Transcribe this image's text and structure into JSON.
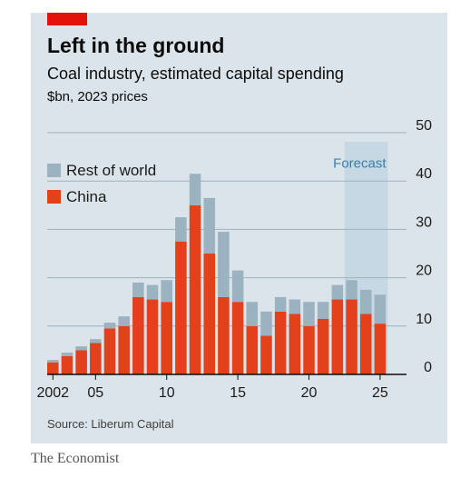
{
  "header": {
    "title": "Left in the ground",
    "subtitle": "Coal industry, estimated capital spending",
    "units": "$bn, 2023 prices"
  },
  "source": "Source: Liberum Capital",
  "brand": "The Economist",
  "colors": {
    "china": "#e3401c",
    "rest_of_world": "#9bb2c1",
    "panel_bg": "#dbe4ea",
    "forecast_band": "#c6d8e4",
    "accent_red": "#e3120b",
    "forecast_text": "#3d7ea6"
  },
  "chart_data": {
    "type": "bar",
    "stacked": true,
    "x": [
      2002,
      2003,
      2004,
      2005,
      2006,
      2007,
      2008,
      2009,
      2010,
      2011,
      2012,
      2013,
      2014,
      2015,
      2016,
      2017,
      2018,
      2019,
      2020,
      2021,
      2022,
      2023,
      2024,
      2025
    ],
    "series": [
      {
        "name": "China",
        "color": "#e3401c",
        "values": [
          2.5,
          3.8,
          5.0,
          6.5,
          9.5,
          10.0,
          16.0,
          15.5,
          15.0,
          27.5,
          35.0,
          25.0,
          16.0,
          15.0,
          10.0,
          8.0,
          13.0,
          12.5,
          10.0,
          11.5,
          15.5,
          15.5,
          12.5,
          10.5
        ]
      },
      {
        "name": "Rest of world",
        "color": "#9bb2c1",
        "values": [
          0.5,
          0.7,
          0.8,
          0.8,
          1.2,
          2.0,
          3.0,
          3.0,
          4.5,
          5.0,
          6.5,
          11.5,
          13.5,
          6.5,
          5.0,
          5.0,
          3.0,
          3.0,
          5.0,
          3.5,
          3.0,
          4.0,
          5.0,
          6.0
        ]
      }
    ],
    "legend": [
      "Rest of world",
      "China"
    ],
    "legend_placement": "top-left",
    "y_ticks": [
      0,
      10,
      20,
      30,
      40,
      50
    ],
    "x_ticks": [
      {
        "value": 2002,
        "label": "2002"
      },
      {
        "value": 2005,
        "label": "05"
      },
      {
        "value": 2010,
        "label": "10"
      },
      {
        "value": 2015,
        "label": "15"
      },
      {
        "value": 2020,
        "label": "20"
      },
      {
        "value": 2025,
        "label": "25"
      }
    ],
    "ylim": [
      0,
      50
    ],
    "y_axis_side": "right",
    "grid": true,
    "forecast": {
      "label": "Forecast",
      "from": 2023,
      "to": 2025
    }
  }
}
